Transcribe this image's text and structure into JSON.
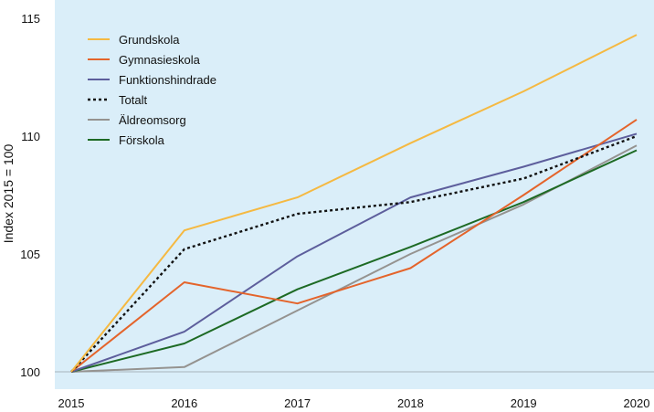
{
  "chart_data": {
    "type": "line",
    "title": "",
    "xlabel": "",
    "ylabel": "Index 2015 = 100",
    "x": [
      "2015",
      "2016",
      "2017",
      "2018",
      "2019",
      "2020"
    ],
    "ylim": [
      100,
      116
    ],
    "yticks": [
      100,
      105,
      110,
      115
    ],
    "grid": false,
    "legend_position": "top-left",
    "background_color": "#daeef9",
    "baseline_color": "#a8b4bc",
    "series": [
      {
        "name": "Grundskola",
        "color": "#f5b942",
        "dashed": false,
        "values": [
          100,
          106.0,
          107.4,
          109.7,
          111.9,
          114.3
        ]
      },
      {
        "name": "Gymnasieskola",
        "color": "#e4642b",
        "dashed": false,
        "values": [
          100,
          103.8,
          102.9,
          104.4,
          107.5,
          110.7
        ]
      },
      {
        "name": "Funktionshindrade",
        "color": "#5d5e9c",
        "dashed": false,
        "values": [
          100,
          101.7,
          104.9,
          107.4,
          108.7,
          110.1
        ]
      },
      {
        "name": "Totalt",
        "color": "#111111",
        "dashed": true,
        "values": [
          100,
          105.2,
          106.7,
          107.2,
          108.2,
          110.0
        ]
      },
      {
        "name": "Äldreomsorg",
        "color": "#959390",
        "dashed": false,
        "values": [
          100,
          100.2,
          102.6,
          105.0,
          107.1,
          109.6
        ]
      },
      {
        "name": "Förskola",
        "color": "#1d6a24",
        "dashed": false,
        "values": [
          100,
          101.2,
          103.5,
          105.3,
          107.2,
          109.4
        ]
      }
    ]
  }
}
